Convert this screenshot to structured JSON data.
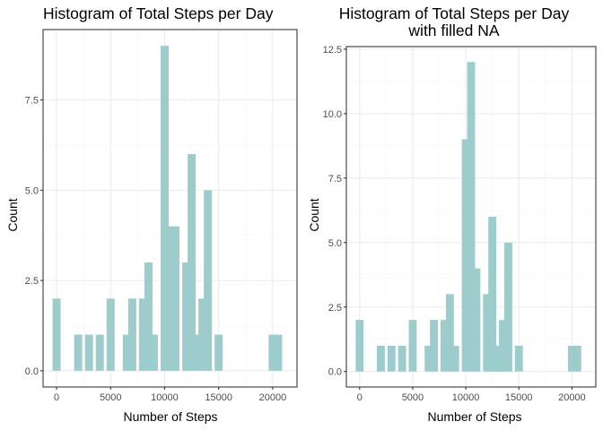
{
  "chart_data": [
    {
      "type": "bar",
      "title": [
        "Histogram of Total Steps per Day"
      ],
      "xlabel": "Number of Steps",
      "ylabel": "Count",
      "xlim": [
        -1250,
        22250
      ],
      "ylim": [
        -0.45,
        9.45
      ],
      "x_ticks": [
        0,
        5000,
        10000,
        15000,
        20000
      ],
      "x_tick_labels": [
        "0",
        "5000",
        "10000",
        "15000",
        "20000"
      ],
      "y_ticks": [
        0,
        2.5,
        5,
        7.5
      ],
      "y_tick_labels": [
        "0.0",
        "2.5",
        "5.0",
        "7.5"
      ],
      "bar_width": 750,
      "bar_color": "#9ccccc",
      "grid": true,
      "bins": [
        0,
        2000,
        2500,
        3000,
        4000,
        5000,
        6000,
        6500,
        7000,
        7500,
        8000,
        8500,
        9000,
        10000,
        10500,
        11000,
        11500,
        12000,
        12500,
        13000,
        13500,
        14000,
        14500,
        15000,
        17500,
        20000,
        20500,
        21000
      ],
      "values": [
        2,
        1,
        0,
        1,
        1,
        2,
        0,
        1,
        2,
        0,
        2,
        3,
        1,
        9,
        4,
        4,
        0,
        3,
        6,
        1,
        2,
        5,
        0,
        1,
        0,
        1,
        1,
        0
      ]
    },
    {
      "type": "bar",
      "title": [
        "Histogram of Total Steps per Day",
        "with filled NA"
      ],
      "xlabel": "Number of Steps",
      "ylabel": "Count",
      "xlim": [
        -1250,
        22250
      ],
      "ylim": [
        -0.6,
        12.6
      ],
      "x_ticks": [
        0,
        5000,
        10000,
        15000,
        20000
      ],
      "x_tick_labels": [
        "0",
        "5000",
        "10000",
        "15000",
        "20000"
      ],
      "y_ticks": [
        0,
        2.5,
        5,
        7.5,
        10,
        12.5
      ],
      "y_tick_labels": [
        "0.0",
        "2.5",
        "5.0",
        "7.5",
        "10.0",
        "12.5"
      ],
      "bar_width": 750,
      "bar_color": "#9ccccc",
      "grid": true,
      "bins": [
        0,
        2000,
        2500,
        3000,
        4000,
        5000,
        6000,
        6500,
        7000,
        7500,
        8000,
        8500,
        9000,
        10000,
        10500,
        11000,
        11500,
        12000,
        12500,
        13000,
        13500,
        14000,
        14500,
        15000,
        17500,
        20000,
        20500,
        21000
      ],
      "values": [
        2,
        1,
        0,
        1,
        1,
        2,
        0,
        1,
        2,
        0,
        2,
        3,
        1,
        9,
        12,
        4,
        0,
        3,
        6,
        1,
        2,
        5,
        0,
        1,
        0,
        1,
        1,
        0
      ]
    }
  ]
}
